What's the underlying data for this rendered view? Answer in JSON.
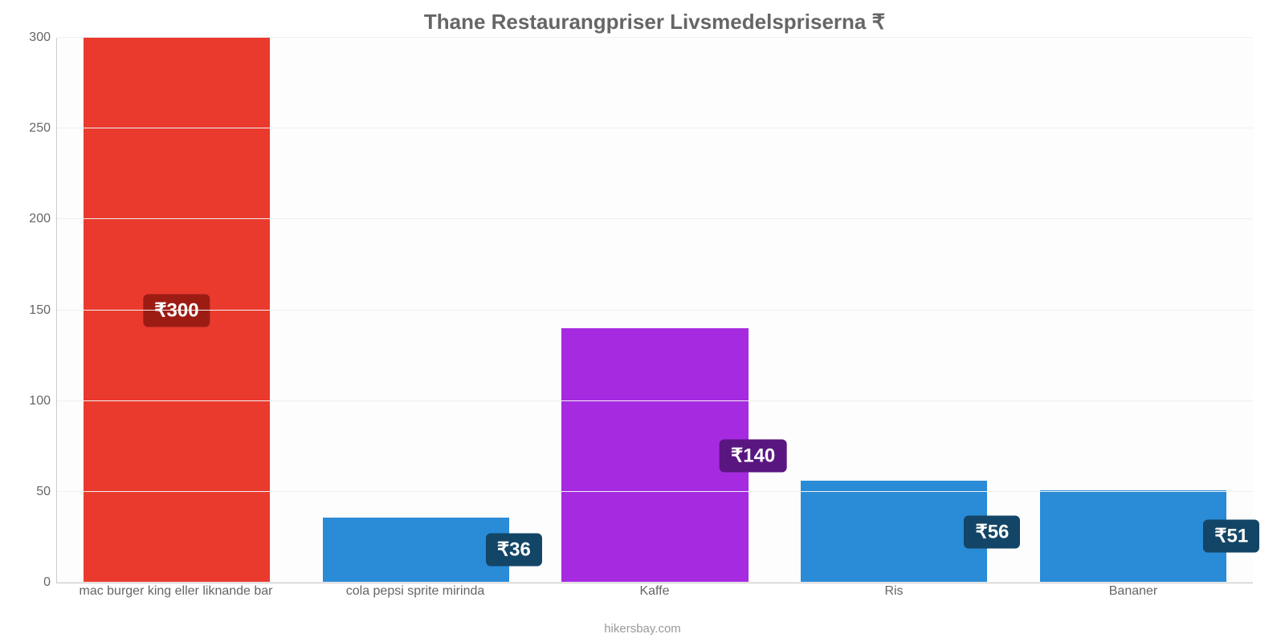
{
  "chart": {
    "type": "bar",
    "title": "Thane Restaurangpriser Livsmedelspriserna ₹",
    "title_fontsize": 26,
    "title_color": "#666666",
    "background_color": "#fdfdfd",
    "grid_color": "#f0f0f0",
    "axis_color": "#cccccc",
    "font_family": "Arial",
    "ylim": [
      0,
      300
    ],
    "yticks": [
      0,
      50,
      100,
      150,
      200,
      250,
      300
    ],
    "ytick_fontsize": 16,
    "ytick_color": "#666666",
    "bar_width_pct": 78,
    "categories": [
      "mac burger king eller liknande bar",
      "cola pepsi sprite mirinda",
      "Kaffe",
      "Ris",
      "Bananer"
    ],
    "values": [
      300,
      36,
      140,
      56,
      51
    ],
    "value_labels": [
      "₹300",
      "₹36",
      "₹140",
      "₹56",
      "₹51"
    ],
    "value_label_positions": [
      "center",
      "right",
      "right",
      "right",
      "right"
    ],
    "bar_colors": [
      "#ea3a2e",
      "#2a8bd6",
      "#a62be0",
      "#2a8bd6",
      "#2a8bd6"
    ],
    "badge_colors": [
      "#9c1c14",
      "#134566",
      "#5a1680",
      "#134566",
      "#134566"
    ],
    "badge_fontsize": 24,
    "xlabel_fontsize": 16,
    "xlabel_color": "#666666",
    "attribution": "hikersbay.com",
    "attribution_color": "#999999",
    "attribution_fontsize": 15
  }
}
